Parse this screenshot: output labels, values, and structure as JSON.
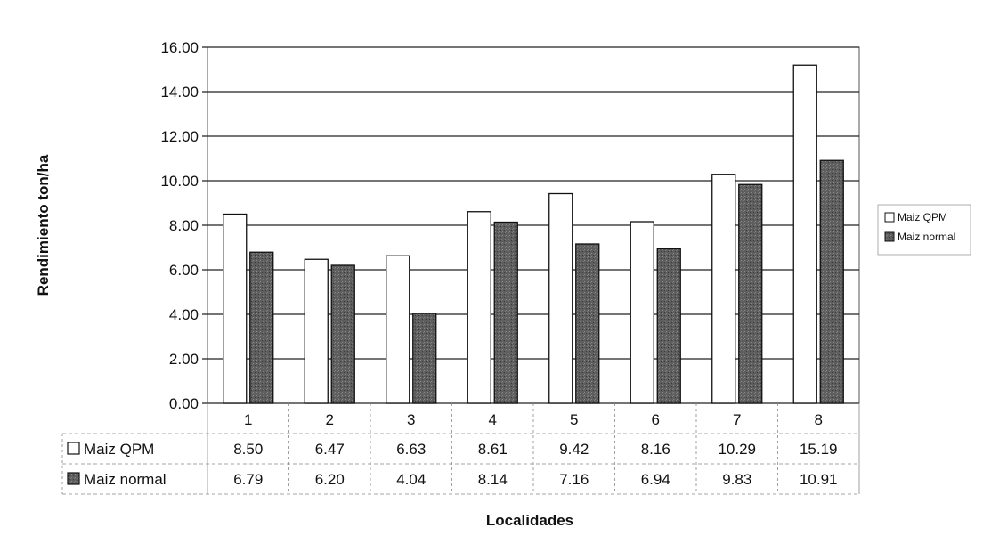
{
  "chart_data": {
    "type": "bar",
    "title": "",
    "xlabel": "Localidades",
    "ylabel": "Rendimiento ton/ha",
    "categories": [
      "1",
      "2",
      "3",
      "4",
      "5",
      "6",
      "7",
      "8"
    ],
    "ylim": [
      0,
      16
    ],
    "ytick_step": 2,
    "tick_decimals": 2,
    "grid": true,
    "legend_position": "right",
    "data_table": true,
    "series": [
      {
        "name": "Maiz QPM",
        "values": [
          8.5,
          6.47,
          6.63,
          8.61,
          9.42,
          8.16,
          10.29,
          15.19
        ],
        "color": "#ffffff"
      },
      {
        "name": "Maiz normal",
        "values": [
          6.79,
          6.2,
          4.04,
          8.14,
          7.16,
          6.94,
          9.83,
          10.91
        ],
        "color": "#6b6b6b"
      }
    ]
  },
  "table_rows": [
    {
      "label": "Maiz QPM",
      "cells": [
        "8.50",
        "6.47",
        "6.63",
        "8.61",
        "9.42",
        "8.16",
        "10.29",
        "15.19"
      ]
    },
    {
      "label": "Maiz normal",
      "cells": [
        "6.79",
        "6.20",
        "4.04",
        "8.14",
        "7.16",
        "6.94",
        "9.83",
        "10.91"
      ]
    }
  ]
}
